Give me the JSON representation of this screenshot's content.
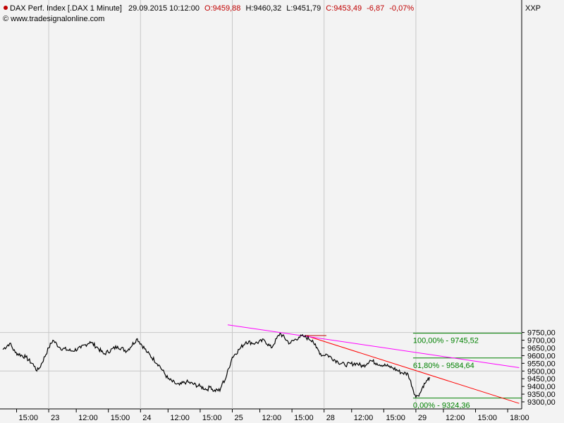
{
  "header": {
    "instrument": "DAX Perf. Index [.DAX  1 Minute]",
    "datetime": "29.09.2015 10:12:00",
    "open": "O:9459,88",
    "high": "H:9460,32",
    "low": "L:9451,79",
    "close": "C:9453,49",
    "change": "-6,87",
    "change_pct": "-0,07%",
    "source": "© www.tradesignalonline.com",
    "axis_unit": "XXP"
  },
  "colors": {
    "price_line": "#000000",
    "trend_red": "#ff0000",
    "trend_magenta": "#ff00ff",
    "fib": "#008000",
    "ohlc_open": "#c00000",
    "ohlc_close": "#c00000",
    "grid": "#c8c8c8",
    "plot_bg": "#f3f3f3"
  },
  "chart_data": {
    "type": "line",
    "ylim": [
      9290,
      9805
    ],
    "grid": true,
    "y_ticks": [
      9300,
      9350,
      9400,
      9450,
      9500,
      9550,
      9600,
      9650,
      9700,
      9750
    ],
    "y_tick_labels": [
      "9300,00",
      "9350,00",
      "9400,00",
      "9450,00",
      "9500,00",
      "9550,00",
      "9600,00",
      "9650,00",
      "9700,00",
      "9750,00"
    ],
    "x_ticks": [
      {
        "label": "15:00",
        "pos": 0.3,
        "day": false
      },
      {
        "label": "23",
        "pos": 1.0,
        "day": true
      },
      {
        "label": "12:00",
        "pos": 1.6,
        "day": false
      },
      {
        "label": "15:00",
        "pos": 2.3,
        "day": false
      },
      {
        "label": "24",
        "pos": 3.0,
        "day": true
      },
      {
        "label": "12:00",
        "pos": 3.6,
        "day": false
      },
      {
        "label": "15:00",
        "pos": 4.3,
        "day": false
      },
      {
        "label": "25",
        "pos": 5.0,
        "day": true
      },
      {
        "label": "12:00",
        "pos": 5.6,
        "day": false
      },
      {
        "label": "15:00",
        "pos": 6.3,
        "day": false
      },
      {
        "label": "28",
        "pos": 7.0,
        "day": true
      },
      {
        "label": "12:00",
        "pos": 7.6,
        "day": false
      },
      {
        "label": "15:00",
        "pos": 8.3,
        "day": false
      },
      {
        "label": "29",
        "pos": 9.0,
        "day": true
      },
      {
        "label": "12:00",
        "pos": 9.6,
        "day": false
      },
      {
        "label": "15:00",
        "pos": 10.3,
        "day": false
      },
      {
        "label": "18:00",
        "pos": 11.0,
        "day": false
      }
    ],
    "price_series": {
      "x": [
        0.0,
        0.15,
        0.27,
        0.5,
        0.7,
        0.74,
        0.8,
        1.0,
        1.09,
        1.25,
        1.5,
        1.7,
        1.9,
        2.07,
        2.2,
        2.5,
        2.7,
        2.93,
        3.15,
        3.4,
        3.6,
        3.75,
        3.85,
        4.0,
        4.3,
        4.45,
        4.53,
        4.6,
        4.67,
        4.73,
        4.78,
        4.84,
        5.0,
        5.15,
        5.3,
        5.5,
        5.7,
        5.85,
        6.04,
        6.25,
        6.45,
        6.55,
        6.75,
        6.83,
        6.96,
        7.04,
        7.3,
        7.45,
        7.7,
        7.85,
        8.0,
        8.15,
        8.4,
        8.5,
        8.68,
        8.83,
        9.0,
        9.03,
        9.1,
        9.15,
        9.2,
        9.25,
        9.3
      ],
      "y": [
        9640,
        9680,
        9620,
        9590,
        9530,
        9500,
        9520,
        9650,
        9700,
        9650,
        9630,
        9650,
        9690,
        9650,
        9610,
        9660,
        9630,
        9710,
        9620,
        9540,
        9450,
        9420,
        9410,
        9430,
        9400,
        9380,
        9400,
        9370,
        9380,
        9370,
        9420,
        9440,
        9590,
        9640,
        9690,
        9680,
        9700,
        9650,
        9745,
        9680,
        9720,
        9725,
        9700,
        9650,
        9600,
        9610,
        9560,
        9540,
        9550,
        9530,
        9570,
        9550,
        9530,
        9520,
        9490,
        9480,
        9330,
        9340,
        9360,
        9400,
        9420,
        9440,
        9460
      ]
    },
    "trendlines": [
      {
        "name": "red",
        "from": [
          6.6,
          9730
        ],
        "to": [
          11.25,
          9290
        ]
      },
      {
        "name": "magenta",
        "from": [
          4.9,
          9800
        ],
        "to": [
          11.25,
          9522
        ]
      }
    ],
    "ohlc_marker": {
      "x": [
        6.6,
        7.05
      ],
      "y": 9730
    },
    "fibonacci": {
      "x_start": 9.0,
      "levels": [
        {
          "value": 9745.52,
          "label": "100,00% - 9745,52"
        },
        {
          "value": 9584.64,
          "label": "61,80% - 9584,64"
        },
        {
          "value": 9324.36,
          "label": "0,00% - 9324,36"
        }
      ]
    }
  }
}
